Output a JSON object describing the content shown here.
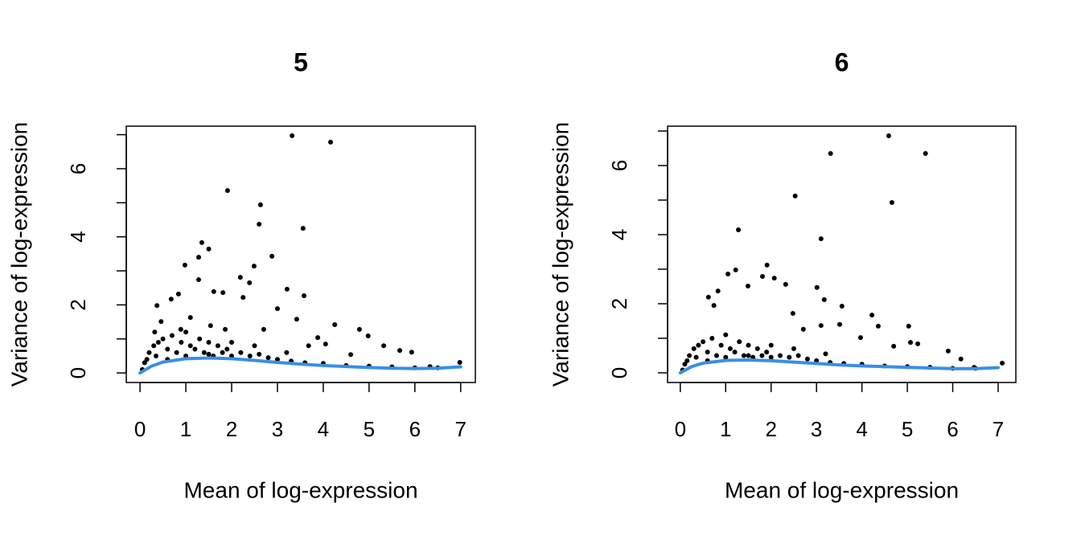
{
  "chart_data": [
    {
      "type": "scatter",
      "title": "5",
      "xlabel": "Mean of log-expression",
      "ylabel": "Variance of log-expression",
      "xlim": [
        -0.3,
        7.32
      ],
      "ylim": [
        -0.28,
        7.25
      ],
      "xticks": [
        0,
        1,
        2,
        3,
        4,
        5,
        6,
        7
      ],
      "yticks": [
        0,
        2,
        4,
        6
      ],
      "yminor_ticks": [
        1,
        3,
        5,
        7
      ],
      "series": [
        {
          "mark": "point",
          "color": "#000000",
          "x": [
            3.32,
            4.16,
            1.91,
            2.63,
            2.6,
            3.56,
            1.35,
            1.5,
            0.98,
            2.88,
            2.49,
            1.28,
            2.19,
            3.21,
            2.39,
            1.28,
            1.61,
            1.81,
            3.58,
            3.0,
            0.68,
            0.84,
            2.25,
            4.25,
            3.42,
            4.79,
            4.98,
            3.88,
            5.32,
            5.67,
            5.93,
            4.6,
            6.98,
            6.33,
            0.32,
            0.46,
            1.1,
            0.37,
            2.7,
            3.68,
            4.05,
            1.86,
            1.54,
            0.89,
            0.1,
            0.2,
            0.3,
            0.4,
            0.5,
            0.6,
            0.7,
            0.8,
            0.9,
            1.0,
            1.1,
            1.2,
            1.3,
            1.4,
            1.5,
            1.6,
            1.7,
            1.8,
            1.9,
            2.0,
            2.2,
            2.4,
            2.6,
            2.8,
            3.0,
            3.3,
            3.6,
            4.0,
            4.5,
            5.0,
            5.5,
            6.0,
            6.5,
            0.05,
            0.15,
            0.35,
            0.6,
            1.0,
            1.5,
            2.0,
            2.5,
            3.2
          ],
          "values": [
            6.97,
            6.78,
            5.36,
            4.94,
            4.37,
            4.25,
            3.83,
            3.64,
            3.17,
            3.43,
            3.14,
            3.4,
            2.81,
            2.46,
            2.65,
            2.74,
            2.39,
            2.36,
            2.27,
            1.89,
            2.17,
            2.32,
            2.22,
            1.42,
            1.58,
            1.28,
            1.09,
            1.04,
            0.8,
            0.66,
            0.61,
            0.54,
            0.31,
            0.19,
            1.2,
            1.51,
            1.63,
            1.98,
            1.28,
            0.8,
            0.85,
            1.28,
            1.39,
            1.28,
            0.3,
            0.6,
            0.8,
            0.9,
            1.0,
            0.7,
            1.1,
            0.6,
            0.9,
            1.2,
            0.8,
            0.7,
            1.0,
            0.6,
            0.9,
            0.5,
            0.8,
            0.6,
            0.7,
            0.5,
            0.6,
            0.5,
            0.55,
            0.45,
            0.4,
            0.35,
            0.3,
            0.28,
            0.22,
            0.2,
            0.18,
            0.15,
            0.15,
            0.1,
            0.4,
            0.5,
            0.4,
            0.5,
            0.55,
            0.9,
            0.8,
            0.6
          ]
        },
        {
          "mark": "line",
          "color": "#3a8ee6",
          "x": [
            0,
            0.25,
            0.5,
            1,
            1.5,
            2,
            2.5,
            3,
            3.5,
            4,
            4.5,
            5,
            5.5,
            6,
            6.5,
            7
          ],
          "values": [
            0,
            0.2,
            0.32,
            0.42,
            0.44,
            0.42,
            0.37,
            0.31,
            0.26,
            0.22,
            0.19,
            0.16,
            0.14,
            0.13,
            0.14,
            0.18
          ]
        }
      ]
    },
    {
      "type": "scatter",
      "title": "6",
      "xlabel": "Mean of log-expression",
      "ylabel": "Variance of log-expression",
      "xlim": [
        -0.28,
        7.39
      ],
      "ylim": [
        -0.28,
        7.14
      ],
      "xticks": [
        0,
        1,
        2,
        3,
        4,
        5,
        6,
        7
      ],
      "yticks": [
        0,
        2,
        4,
        6
      ],
      "yminor_ticks": [
        1,
        3,
        5,
        7
      ],
      "series": [
        {
          "mark": "point",
          "color": "#000000",
          "x": [
            4.59,
            5.4,
            3.31,
            2.53,
            4.66,
            1.28,
            3.1,
            1.91,
            1.22,
            1.05,
            1.81,
            2.32,
            3.01,
            2.07,
            1.49,
            3.17,
            3.56,
            4.22,
            4.36,
            5.03,
            3.51,
            3.1,
            5.23,
            5.07,
            5.9,
            4.7,
            6.18,
            7.09,
            6.47,
            0.62,
            0.74,
            0.83,
            2.48,
            2.71,
            3.97,
            0.1,
            0.2,
            0.3,
            0.4,
            0.5,
            0.6,
            0.7,
            0.8,
            0.9,
            1.0,
            1.1,
            1.2,
            1.3,
            1.4,
            1.5,
            1.6,
            1.7,
            1.8,
            1.9,
            2.0,
            2.2,
            2.4,
            2.6,
            2.8,
            3.0,
            3.3,
            3.6,
            4.0,
            4.5,
            5.0,
            5.5,
            6.0,
            6.5,
            0.05,
            0.15,
            0.35,
            0.6,
            1.0,
            1.5,
            2.0,
            2.5,
            3.2
          ],
          "values": [
            6.86,
            6.35,
            6.35,
            5.12,
            4.93,
            4.14,
            3.88,
            3.12,
            2.98,
            2.86,
            2.79,
            2.56,
            2.47,
            2.74,
            2.51,
            2.12,
            1.93,
            1.67,
            1.35,
            1.35,
            1.4,
            1.37,
            0.84,
            0.88,
            0.63,
            0.77,
            0.4,
            0.28,
            0.16,
            2.19,
            1.95,
            2.37,
            1.72,
            1.26,
            1.02,
            0.25,
            0.5,
            0.7,
            0.8,
            0.9,
            0.6,
            1.0,
            0.5,
            0.8,
            1.1,
            0.7,
            0.6,
            0.9,
            0.5,
            0.8,
            0.45,
            0.7,
            0.5,
            0.6,
            0.45,
            0.5,
            0.45,
            0.5,
            0.4,
            0.35,
            0.3,
            0.27,
            0.25,
            0.2,
            0.18,
            0.16,
            0.13,
            0.13,
            0.08,
            0.35,
            0.45,
            0.35,
            0.45,
            0.5,
            0.8,
            0.7,
            0.55
          ]
        },
        {
          "mark": "line",
          "color": "#3a8ee6",
          "x": [
            0,
            0.25,
            0.5,
            1,
            1.5,
            2,
            2.5,
            3,
            3.5,
            4,
            4.5,
            5,
            5.5,
            6,
            6.5,
            7
          ],
          "values": [
            0,
            0.18,
            0.28,
            0.36,
            0.37,
            0.35,
            0.31,
            0.27,
            0.23,
            0.2,
            0.18,
            0.16,
            0.14,
            0.12,
            0.12,
            0.15
          ]
        }
      ]
    }
  ]
}
